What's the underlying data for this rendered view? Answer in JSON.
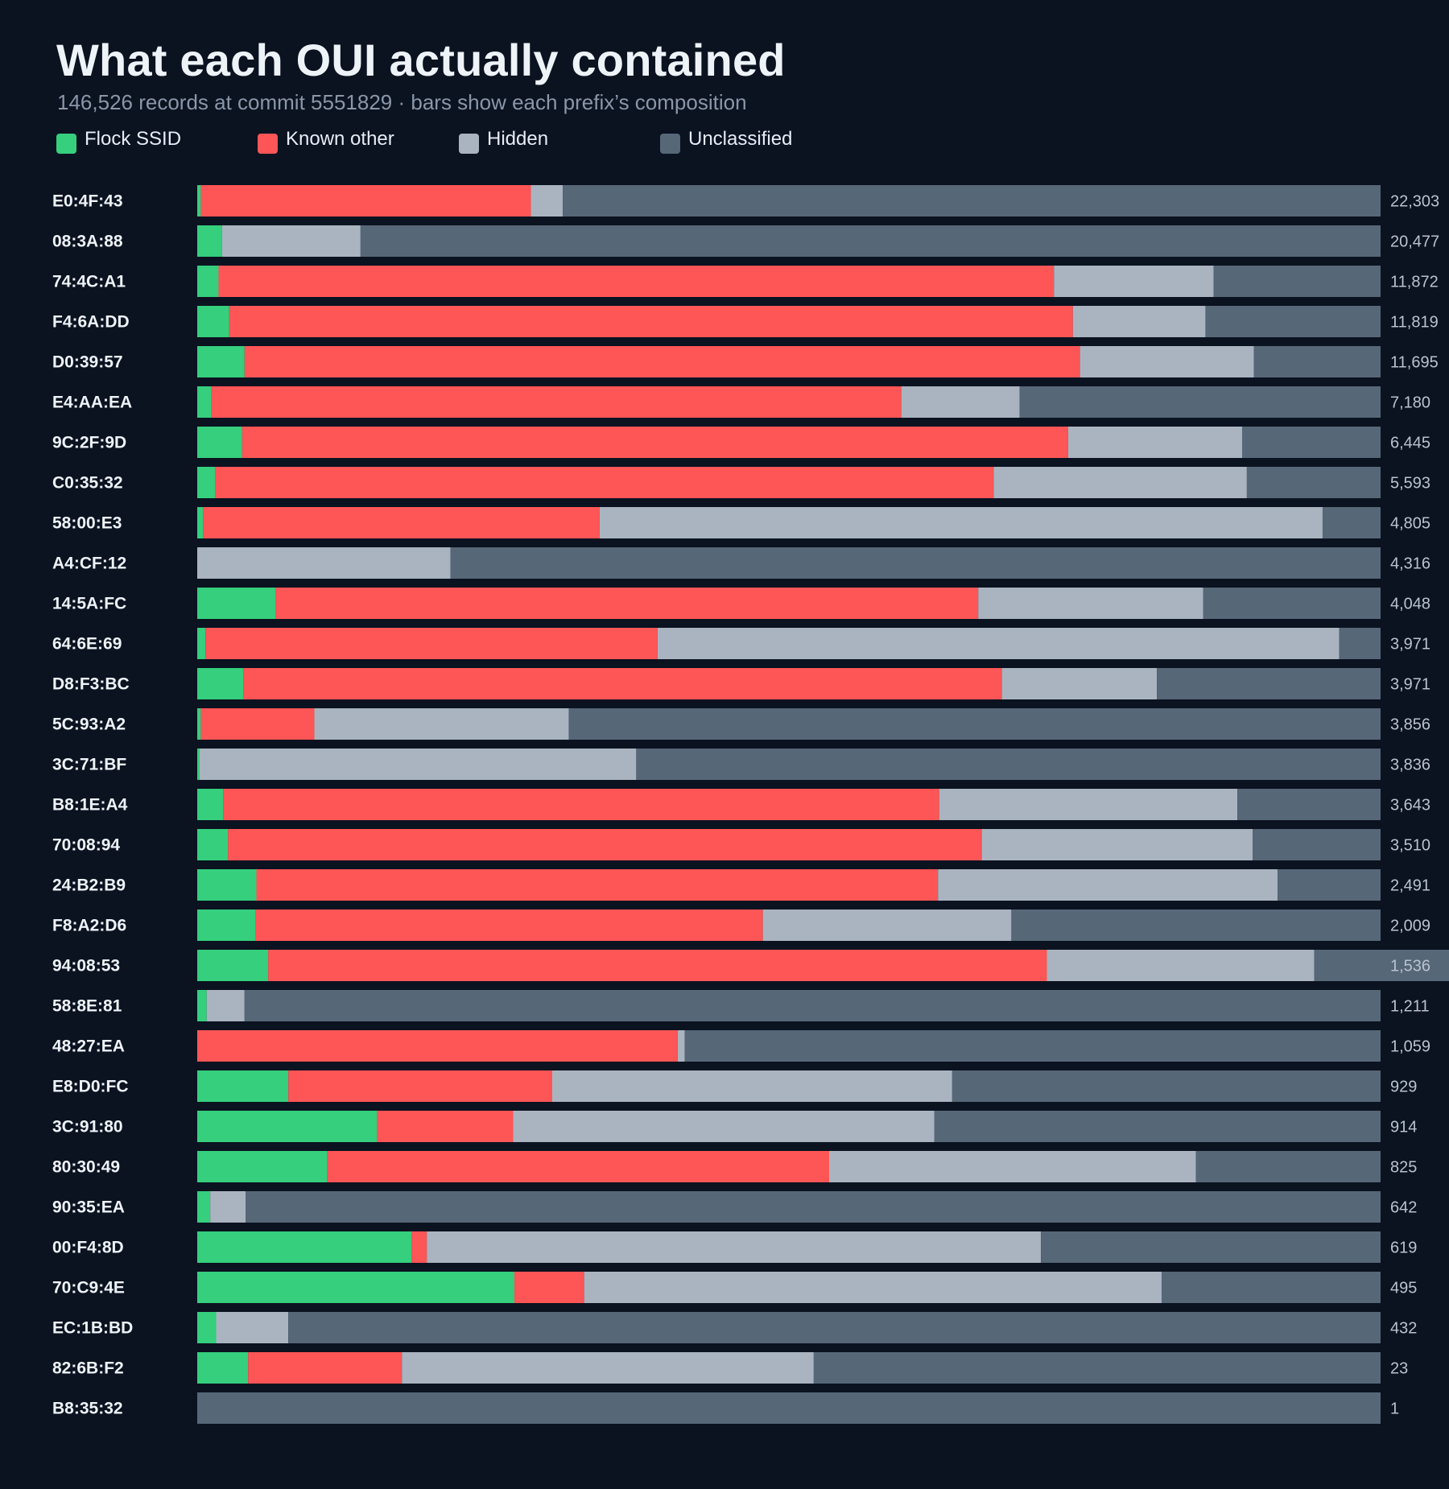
{
  "title": "What each OUI actually contained",
  "subtitle": "146,526 records at commit 5551829 · bars show each prefix’s composition",
  "colors": {
    "background": "#0b1220",
    "flock": "#35cf7d",
    "known_other": "#fe5656",
    "hidden": "#aab4c0",
    "unclassified": "#566778"
  },
  "legend": [
    {
      "label": "Flock SSID",
      "color": "#35cf7d"
    },
    {
      "label": "Known other",
      "color": "#fe5656"
    },
    {
      "label": "Hidden",
      "color": "#aab4c0"
    },
    {
      "label": "Unclassified",
      "color": "#566778"
    }
  ],
  "chart_data": {
    "type": "bar",
    "orientation": "horizontal",
    "stacked": true,
    "normalized": true,
    "title": "What each OUI actually contained",
    "subtitle": "146,526 records at commit 5551829 · bars show each prefix’s composition",
    "legend_placement": "top-left",
    "grid": false,
    "categories": [
      "E0:4F:43",
      "08:3A:88",
      "74:4C:A1",
      "F4:6A:DD",
      "D0:39:57",
      "E4:AA:EA",
      "9C:2F:9D",
      "C0:35:32",
      "58:00:E3",
      "A4:CF:12",
      "14:5A:FC",
      "64:6E:69",
      "D8:F3:BC",
      "5C:93:A2",
      "3C:71:BF",
      "B8:1E:A4",
      "70:08:94",
      "24:B2:B9",
      "F8:A2:D6",
      "94:08:53",
      "58:8E:81",
      "48:27:EA",
      "E8:D0:FC",
      "3C:91:80",
      "80:30:49",
      "90:35:EA",
      "00:F4:8D",
      "70:C9:4E",
      "EC:1B:BD",
      "82:6B:F2",
      "B8:35:32"
    ],
    "totals": [
      "22,303",
      "20,477",
      "11,872",
      "11,819",
      "11,695",
      "7,180",
      "6,445",
      "5,593",
      "4,805",
      "4,316",
      "4,048",
      "3,971",
      "3,971",
      "3,856",
      "3,836",
      "3,643",
      "3,510",
      "2,491",
      "2,009",
      "1,536",
      "1,211",
      "1,059",
      "929",
      "914",
      "825",
      "642",
      "619",
      "495",
      "432",
      "23",
      "1"
    ],
    "series": [
      {
        "name": "Flock SSID",
        "values": [
          0.3,
          2.1,
          1.8,
          2.7,
          4.0,
          1.2,
          3.8,
          1.5,
          0.5,
          0.0,
          6.6,
          0.7,
          3.9,
          0.3,
          0.2,
          2.2,
          2.6,
          5.0,
          4.9,
          6.0,
          0.8,
          0.0,
          7.7,
          15.2,
          11.0,
          1.1,
          18.1,
          26.8,
          1.6,
          4.3,
          0.0
        ]
      },
      {
        "name": "Known other",
        "values": [
          27.9,
          0.0,
          70.6,
          71.3,
          70.6,
          58.3,
          69.8,
          65.8,
          33.5,
          0.0,
          59.4,
          38.2,
          64.1,
          9.6,
          0.0,
          60.5,
          63.7,
          57.6,
          42.9,
          65.8,
          0.0,
          40.6,
          22.3,
          11.5,
          42.4,
          0.0,
          1.3,
          5.9,
          0.0,
          13.0,
          0.0
        ]
      },
      {
        "name": "Hidden",
        "values": [
          2.7,
          11.7,
          13.5,
          11.2,
          14.7,
          10.0,
          14.7,
          21.4,
          61.1,
          21.4,
          19.0,
          57.6,
          13.1,
          21.5,
          36.9,
          25.2,
          22.9,
          28.7,
          21.0,
          22.6,
          3.2,
          0.6,
          33.8,
          35.6,
          31.0,
          3.0,
          51.9,
          48.8,
          6.1,
          34.8,
          0.0
        ]
      },
      {
        "name": "Unclassified",
        "values": [
          69.1,
          86.2,
          14.1,
          14.8,
          10.7,
          30.5,
          11.7,
          11.3,
          4.9,
          78.6,
          15.0,
          3.5,
          18.9,
          68.6,
          62.9,
          12.1,
          10.8,
          8.7,
          31.2,
          11.6,
          96.0,
          58.8,
          36.2,
          37.7,
          15.6,
          95.9,
          28.7,
          18.5,
          92.3,
          47.9,
          100.0
        ]
      }
    ],
    "value_unit": "percent of prefix records",
    "xlim": [
      0,
      100
    ]
  }
}
